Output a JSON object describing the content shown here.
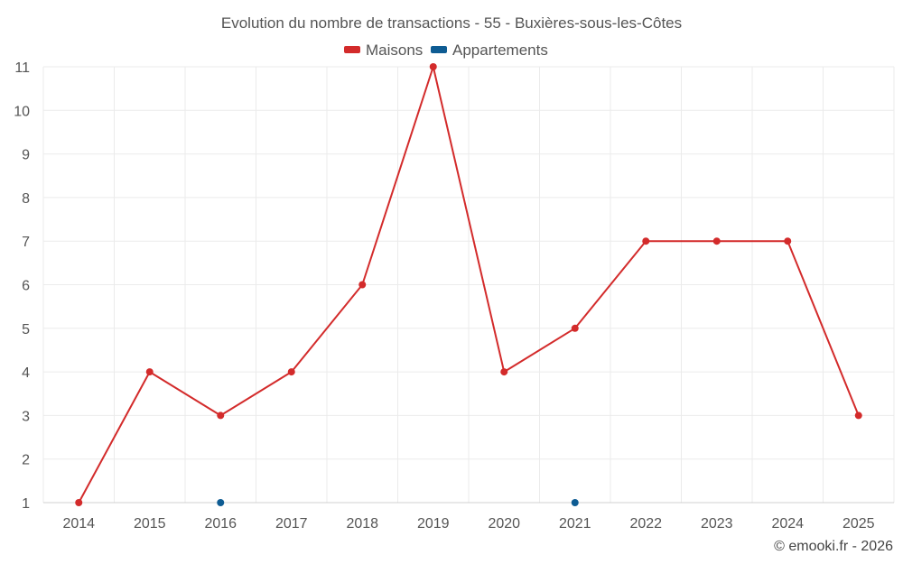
{
  "chart_data": {
    "type": "line",
    "title": "Evolution du nombre de transactions - 55 - Buxières-sous-les-Côtes",
    "categories": [
      "2014",
      "2015",
      "2016",
      "2017",
      "2018",
      "2019",
      "2020",
      "2021",
      "2022",
      "2023",
      "2024",
      "2025"
    ],
    "ylim": [
      1,
      11
    ],
    "yticks": [
      1,
      2,
      3,
      4,
      5,
      6,
      7,
      8,
      9,
      10,
      11
    ],
    "grid": true,
    "legend_position": "top-center",
    "series": [
      {
        "name": "Maisons",
        "color": "#d32b2b",
        "values": [
          1,
          4,
          3,
          4,
          6,
          11,
          4,
          5,
          7,
          7,
          7,
          3
        ]
      },
      {
        "name": "Appartements",
        "color": "#0e5c93",
        "values": [
          null,
          null,
          1,
          null,
          null,
          null,
          null,
          1,
          null,
          null,
          null,
          null
        ]
      }
    ],
    "credit": "© emooki.fr - 2026"
  }
}
